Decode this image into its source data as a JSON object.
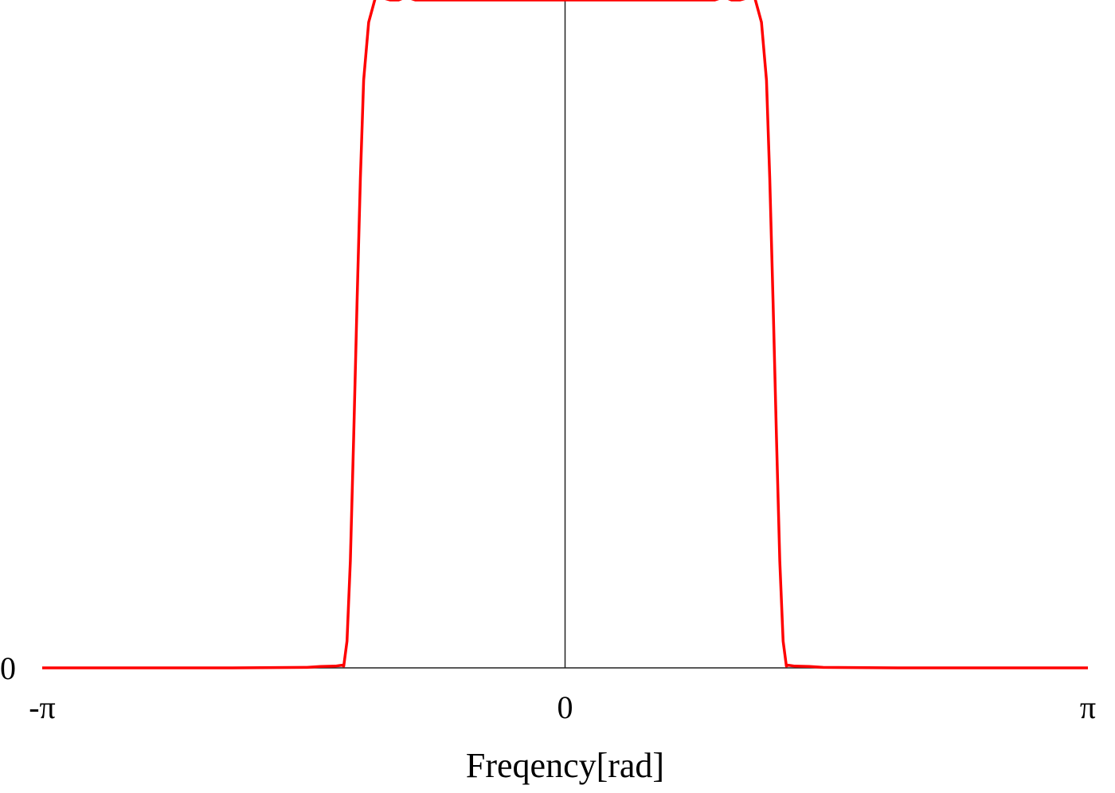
{
  "chart_data": {
    "type": "line",
    "title": "",
    "xlabel": "Freqency[rad]",
    "ylabel": "",
    "xlim": [
      -3.14159,
      3.14159
    ],
    "ylim": [
      0,
      1.5
    ],
    "grid": false,
    "legend": "none",
    "x_ticks": [
      {
        "value": -3.14159,
        "label": "-π"
      },
      {
        "value": 0,
        "label": "0"
      },
      {
        "value": 3.14159,
        "label": "π"
      }
    ],
    "y_ticks": [
      {
        "value": 0,
        "label": "0"
      }
    ],
    "series": [
      {
        "color": "#ff0000",
        "x": [
          -3.14159,
          -2.0,
          -1.55,
          -1.47,
          -1.38,
          -1.34,
          -1.33,
          -1.31,
          -1.29,
          -1.27,
          -1.25,
          -1.23,
          -1.21,
          -1.18,
          -1.14,
          -1.1,
          -1.05,
          -1.0,
          -0.98,
          -0.96,
          -0.94,
          -0.9,
          -0.8,
          -0.6,
          -0.3,
          0.0,
          0.3,
          0.6,
          0.8,
          0.9,
          0.94,
          0.96,
          0.98,
          1.0,
          1.05,
          1.1,
          1.14,
          1.18,
          1.21,
          1.23,
          1.25,
          1.27,
          1.29,
          1.31,
          1.33,
          1.34,
          1.38,
          1.47,
          1.55,
          2.0,
          3.14159
        ],
        "y": [
          0,
          0,
          0.001,
          0.003,
          0.004,
          0.006,
          0.004,
          0.06,
          0.24,
          0.52,
          0.82,
          1.1,
          1.32,
          1.45,
          1.505,
          1.505,
          1.5,
          1.5,
          1.503,
          1.508,
          1.505,
          1.5,
          1.5,
          1.5,
          1.5,
          1.5,
          1.5,
          1.5,
          1.5,
          1.5,
          1.505,
          1.508,
          1.503,
          1.5,
          1.5,
          1.505,
          1.505,
          1.45,
          1.32,
          1.1,
          0.82,
          0.52,
          0.24,
          0.06,
          0.004,
          0.006,
          0.004,
          0.003,
          0.001,
          0,
          0
        ]
      }
    ]
  }
}
